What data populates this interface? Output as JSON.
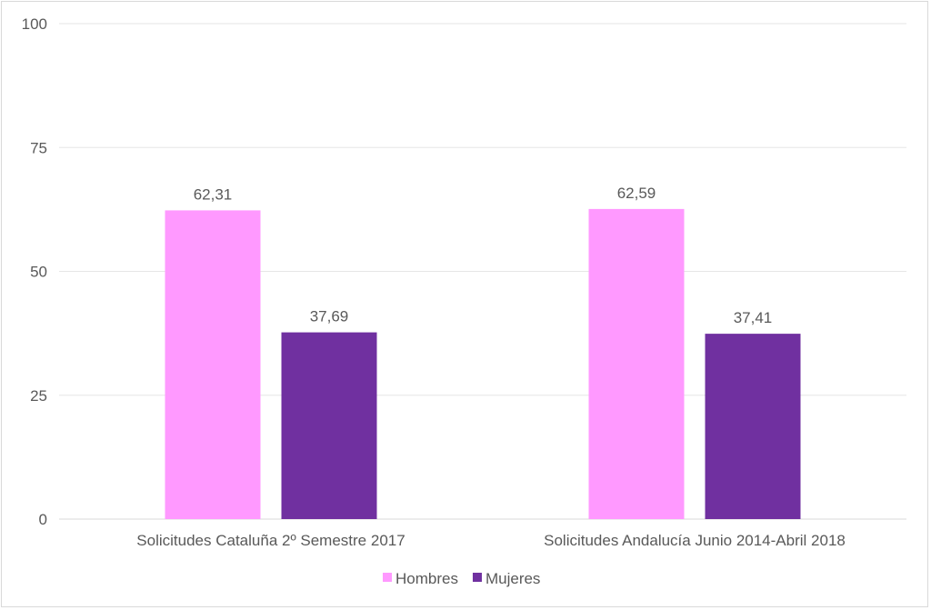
{
  "chart_data": {
    "type": "bar",
    "title": "",
    "xlabel": "",
    "ylabel": "",
    "categories": [
      "Solicitudes Cataluña 2º Semestre 2017",
      "Solicitudes Andalucía Junio 2014-Abril 2018"
    ],
    "series": [
      {
        "name": "Hombres",
        "values": [
          62.31,
          62.59
        ],
        "labels": [
          "62,31",
          "62,59"
        ],
        "color": "#FF99FF"
      },
      {
        "name": "Mujeres",
        "values": [
          37.69,
          37.41
        ],
        "labels": [
          "37,69",
          "37,41"
        ],
        "color": "#7030A0"
      }
    ],
    "ylim": [
      0,
      100
    ],
    "yticks": [
      0,
      25,
      50,
      75,
      100
    ],
    "grid": true,
    "legend": "bottom"
  }
}
